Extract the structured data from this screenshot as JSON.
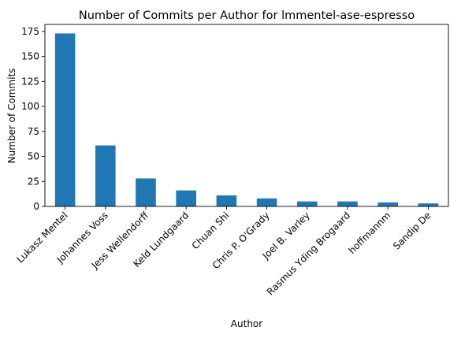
{
  "chart_data": {
    "type": "bar",
    "title": "Number of Commits per Author for lmmentel-ase-espresso",
    "xlabel": "Author",
    "ylabel": "Number of Commits",
    "categories": [
      "Lukasz Mentel",
      "Johannes Voss",
      "Jess Wellendorff",
      "Keld Lundgaard",
      "Chuan Shi",
      "Chris P. O'Grady",
      "Joel B. Varley",
      "Rasmus Yding Brogaard",
      "hoffmannm",
      "Sandip De"
    ],
    "values": [
      173,
      61,
      28,
      16,
      11,
      8,
      5,
      5,
      4,
      3
    ],
    "ylim": [
      0,
      182
    ],
    "yticks": [
      0,
      25,
      50,
      75,
      100,
      125,
      150,
      175
    ],
    "bar_color": "#1f77b4",
    "grid": false,
    "legend": "none"
  }
}
